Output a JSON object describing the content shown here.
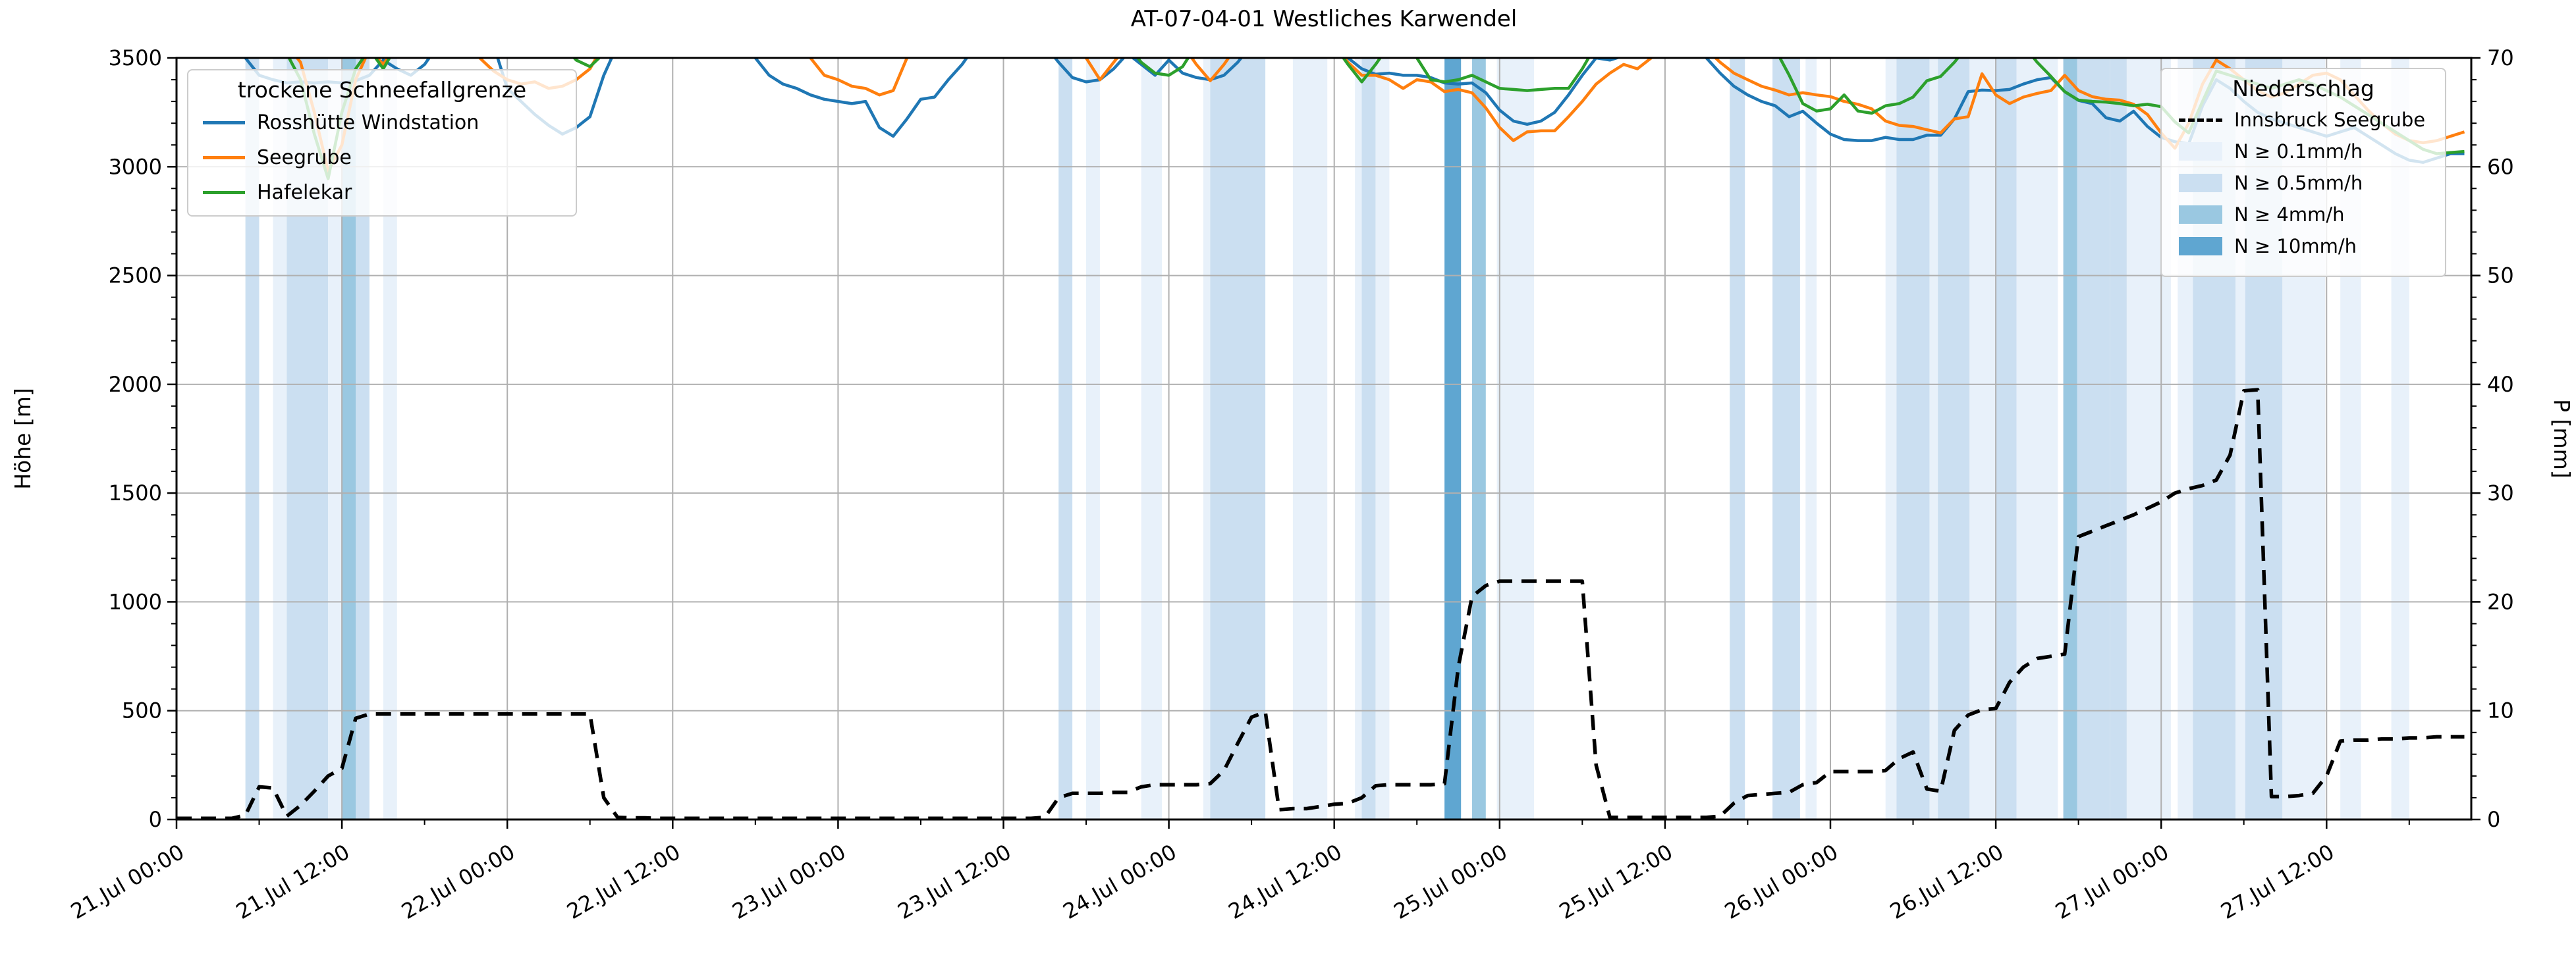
{
  "title": "AT-07-04-01 Westliches Karwendel",
  "axes": {
    "left_label": "Höhe [m]",
    "right_label": "P [mm]",
    "left_ticks": [
      0,
      500,
      1000,
      1500,
      2000,
      2500,
      3000,
      3500
    ],
    "right_ticks": [
      0,
      10,
      20,
      30,
      40,
      50,
      60,
      70
    ],
    "x_tick_hours": [
      0,
      12,
      24,
      36,
      48,
      60,
      72,
      84,
      96,
      108,
      120,
      132,
      144,
      156
    ],
    "x_tick_labels": [
      "21.Jul 00:00",
      "21.Jul 12:00",
      "22.Jul 00:00",
      "22.Jul 12:00",
      "23.Jul 00:00",
      "23.Jul 12:00",
      "24.Jul 00:00",
      "24.Jul 12:00",
      "25.Jul 00:00",
      "25.Jul 12:00",
      "26.Jul 00:00",
      "26.Jul 12:00",
      "27.Jul 00:00",
      "27.Jul 12:00"
    ]
  },
  "legend_snow": {
    "title": "trockene Schneefallgrenze",
    "items": [
      {
        "label": "Rosshütte Windstation",
        "color": "#1f77b4"
      },
      {
        "label": "Seegrube",
        "color": "#ff7f0e"
      },
      {
        "label": "Hafelekar",
        "color": "#2ca02c"
      }
    ]
  },
  "legend_precip": {
    "title": "Niederschlag",
    "line_item": {
      "label": "Innsbruck Seegrube",
      "color": "#000000"
    },
    "band_items": [
      {
        "label": "N ≥ 0.1mm/h"
      },
      {
        "label": "N ≥ 0.5mm/h"
      },
      {
        "label": "N ≥ 4mm/h"
      },
      {
        "label": "N ≥ 10mm/h"
      }
    ]
  },
  "chart_data": {
    "type": "line",
    "x_unit": "hours since 21 Jul 00:00",
    "x_start_hour": 0,
    "x_end_hour": 166.5,
    "ylim_left": [
      0,
      3500
    ],
    "ylim_right": [
      0,
      70
    ],
    "grid": true,
    "clip_above_value": 3510,
    "band_colors": [
      "#e8f1fa",
      "#cbdff1",
      "#9ac8e1",
      "#5fa6d1"
    ],
    "grid_color": "#b0b0b0",
    "series": [
      {
        "name": "Rosshütte Windstation",
        "color": "#1f77b4",
        "axis": "left",
        "values": [
          3560,
          3560,
          3560,
          3560,
          3560,
          3500,
          3420,
          3400,
          3385,
          3390,
          3385,
          3390,
          3385,
          3395,
          3420,
          3490,
          3450,
          3420,
          3470,
          3560,
          3560,
          3560,
          3560,
          3560,
          3360,
          3300,
          3240,
          3190,
          3150,
          3180,
          3230,
          3420,
          3560,
          3560,
          3560,
          3560,
          3560,
          3560,
          3560,
          3560,
          3560,
          3560,
          3500,
          3420,
          3380,
          3360,
          3330,
          3310,
          3300,
          3290,
          3300,
          3180,
          3140,
          3220,
          3310,
          3320,
          3400,
          3470,
          3560,
          3560,
          3560,
          3560,
          3560,
          3560,
          3480,
          3410,
          3390,
          3400,
          3450,
          3520,
          3470,
          3420,
          3490,
          3430,
          3410,
          3400,
          3420,
          3480,
          3560,
          3560,
          3560,
          3560,
          3560,
          3560,
          3560,
          3500,
          3450,
          3425,
          3430,
          3420,
          3420,
          3410,
          3385,
          3380,
          3385,
          3340,
          3260,
          3210,
          3195,
          3210,
          3250,
          3330,
          3420,
          3500,
          3490,
          3510,
          3560,
          3530,
          3560,
          3560,
          3560,
          3500,
          3430,
          3370,
          3330,
          3300,
          3280,
          3230,
          3255,
          3200,
          3150,
          3125,
          3120,
          3120,
          3135,
          3125,
          3125,
          3145,
          3145,
          3220,
          3345,
          3352,
          3350,
          3355,
          3380,
          3400,
          3410,
          3345,
          3305,
          3290,
          3225,
          3210,
          3255,
          3185,
          3135,
          3115,
          3105,
          3280,
          3400,
          3360,
          3300,
          3250,
          3220,
          3200,
          3180,
          3160,
          3140,
          3160,
          3180,
          3140,
          3100,
          3060,
          3030,
          3020,
          3040,
          3060,
          3060
        ]
      },
      {
        "name": "Seegrube",
        "color": "#ff7f0e",
        "axis": "left",
        "values": [
          3560,
          3560,
          3560,
          3560,
          3560,
          3560,
          3560,
          3560,
          3560,
          3480,
          3250,
          2980,
          3100,
          3400,
          3540,
          3470,
          3560,
          3560,
          3560,
          3560,
          3560,
          3560,
          3500,
          3440,
          3400,
          3380,
          3390,
          3360,
          3370,
          3400,
          3450,
          3560,
          3560,
          3560,
          3560,
          3560,
          3560,
          3560,
          3560,
          3560,
          3560,
          3560,
          3560,
          3560,
          3560,
          3560,
          3500,
          3420,
          3400,
          3370,
          3360,
          3330,
          3350,
          3500,
          3560,
          3560,
          3560,
          3560,
          3560,
          3560,
          3560,
          3560,
          3560,
          3560,
          3560,
          3560,
          3500,
          3400,
          3480,
          3560,
          3560,
          3560,
          3560,
          3560,
          3470,
          3395,
          3470,
          3560,
          3560,
          3560,
          3560,
          3560,
          3560,
          3560,
          3560,
          3480,
          3420,
          3420,
          3400,
          3360,
          3400,
          3390,
          3345,
          3355,
          3340,
          3270,
          3180,
          3120,
          3160,
          3165,
          3165,
          3230,
          3300,
          3380,
          3430,
          3470,
          3450,
          3500,
          3560,
          3560,
          3560,
          3540,
          3480,
          3430,
          3400,
          3370,
          3352,
          3330,
          3340,
          3330,
          3322,
          3300,
          3287,
          3266,
          3210,
          3190,
          3185,
          3170,
          3155,
          3220,
          3230,
          3427,
          3330,
          3290,
          3320,
          3337,
          3350,
          3420,
          3350,
          3322,
          3310,
          3306,
          3287,
          3240,
          3155,
          3085,
          3200,
          3380,
          3490,
          3450,
          3400,
          3350,
          3320,
          3340,
          3380,
          3420,
          3430,
          3400,
          3330,
          3260,
          3200,
          3150,
          3120,
          3110,
          3120,
          3140,
          3160
        ]
      },
      {
        "name": "Hafelekar",
        "color": "#2ca02c",
        "axis": "left",
        "values": [
          3560,
          3560,
          3560,
          3560,
          3560,
          3560,
          3560,
          3560,
          3520,
          3400,
          3150,
          2945,
          3250,
          3450,
          3540,
          3450,
          3560,
          3560,
          3560,
          3560,
          3560,
          3560,
          3560,
          3560,
          3560,
          3560,
          3560,
          3560,
          3560,
          3490,
          3460,
          3520,
          3560,
          3560,
          3560,
          3560,
          3560,
          3560,
          3560,
          3560,
          3560,
          3560,
          3560,
          3560,
          3560,
          3560,
          3560,
          3560,
          3560,
          3560,
          3560,
          3560,
          3560,
          3560,
          3560,
          3560,
          3560,
          3560,
          3560,
          3560,
          3560,
          3560,
          3560,
          3560,
          3560,
          3560,
          3560,
          3560,
          3560,
          3560,
          3480,
          3430,
          3420,
          3460,
          3560,
          3560,
          3560,
          3560,
          3560,
          3560,
          3560,
          3560,
          3560,
          3560,
          3560,
          3470,
          3390,
          3470,
          3560,
          3560,
          3500,
          3400,
          3390,
          3400,
          3420,
          3390,
          3360,
          3355,
          3350,
          3355,
          3360,
          3360,
          3450,
          3560,
          3560,
          3560,
          3560,
          3560,
          3560,
          3560,
          3560,
          3560,
          3560,
          3560,
          3560,
          3560,
          3540,
          3422,
          3290,
          3256,
          3266,
          3330,
          3256,
          3246,
          3280,
          3290,
          3320,
          3395,
          3415,
          3480,
          3560,
          3560,
          3560,
          3560,
          3560,
          3480,
          3415,
          3345,
          3306,
          3300,
          3297,
          3290,
          3280,
          3287,
          3276,
          3206,
          3155,
          3300,
          3440,
          3420,
          3400,
          3380,
          3360,
          3380,
          3400,
          3380,
          3350,
          3320,
          3280,
          3240,
          3200,
          3160,
          3120,
          3080,
          3060,
          3065,
          3070
        ]
      }
    ],
    "precip_line": {
      "name": "Innsbruck Seegrube",
      "color": "#000000",
      "axis": "right",
      "dashed": true,
      "values": [
        0.1,
        0.1,
        0.1,
        0.1,
        0.1,
        0.4,
        3.0,
        2.9,
        0.3,
        1.3,
        2.6,
        4.0,
        4.7,
        9.3,
        9.7,
        9.7,
        9.7,
        9.7,
        9.7,
        9.7,
        9.7,
        9.7,
        9.7,
        9.7,
        9.7,
        9.7,
        9.7,
        9.7,
        9.7,
        9.7,
        9.7,
        2.0,
        0.2,
        0.15,
        0.15,
        0.1,
        0.1,
        0.1,
        0.1,
        0.1,
        0.1,
        0.1,
        0.1,
        0.1,
        0.1,
        0.1,
        0.1,
        0.1,
        0.1,
        0.1,
        0.1,
        0.1,
        0.1,
        0.1,
        0.1,
        0.1,
        0.1,
        0.1,
        0.1,
        0.1,
        0.1,
        0.1,
        0.1,
        0.2,
        2.0,
        2.4,
        2.4,
        2.4,
        2.5,
        2.5,
        3.0,
        3.2,
        3.2,
        3.2,
        3.2,
        3.3,
        4.5,
        7.0,
        9.4,
        9.9,
        0.9,
        1.0,
        1.0,
        1.2,
        1.4,
        1.5,
        2.0,
        3.1,
        3.2,
        3.2,
        3.2,
        3.2,
        3.3,
        14.0,
        20.5,
        21.5,
        21.9,
        21.9,
        21.9,
        21.9,
        21.9,
        21.9,
        21.9,
        5.0,
        0.2,
        0.2,
        0.2,
        0.2,
        0.2,
        0.2,
        0.2,
        0.2,
        0.3,
        1.5,
        2.2,
        2.3,
        2.4,
        2.5,
        3.2,
        3.4,
        4.4,
        4.4,
        4.4,
        4.4,
        4.5,
        5.6,
        6.2,
        2.8,
        2.6,
        8.2,
        9.6,
        10.1,
        10.2,
        12.6,
        14.0,
        14.8,
        15.0,
        15.2,
        26.0,
        26.5,
        27.0,
        27.5,
        28.0,
        28.6,
        29.2,
        30.0,
        30.4,
        30.7,
        31.2,
        33.5,
        39.4,
        39.5,
        2.1,
        2.1,
        2.2,
        2.4,
        4.0,
        7.2,
        7.3,
        7.3,
        7.4,
        7.4,
        7.5,
        7.5,
        7.6,
        7.6,
        7.6
      ]
    },
    "precip_bands": [
      [
        5,
        6,
        2
      ],
      [
        7,
        8,
        1
      ],
      [
        8,
        11,
        2
      ],
      [
        11,
        12,
        1
      ],
      [
        12,
        13,
        3
      ],
      [
        13,
        14,
        2
      ],
      [
        15,
        16,
        1
      ],
      [
        64,
        65,
        2
      ],
      [
        66,
        67,
        1
      ],
      [
        70,
        71.5,
        1
      ],
      [
        74.5,
        75,
        1
      ],
      [
        75,
        79,
        2
      ],
      [
        81,
        83.5,
        1
      ],
      [
        85.5,
        86,
        1
      ],
      [
        86,
        87,
        2
      ],
      [
        87,
        88,
        1
      ],
      [
        92,
        93.2,
        4
      ],
      [
        94,
        95,
        3
      ],
      [
        95.8,
        98.5,
        1
      ],
      [
        112.7,
        113.8,
        2
      ],
      [
        115.8,
        117.8,
        2
      ],
      [
        118.2,
        119,
        1
      ],
      [
        124,
        124.8,
        1
      ],
      [
        124.8,
        127.2,
        2
      ],
      [
        127.2,
        127.8,
        1
      ],
      [
        127.8,
        130.1,
        2
      ],
      [
        130.1,
        132,
        1
      ],
      [
        132,
        133.5,
        2
      ],
      [
        133.5,
        136.5,
        1
      ],
      [
        136.9,
        137.9,
        3
      ],
      [
        137.9,
        140.3,
        2
      ],
      [
        140.3,
        141.5,
        2
      ],
      [
        141.5,
        144.7,
        1
      ],
      [
        145.2,
        146.3,
        1
      ],
      [
        146.3,
        149.4,
        2
      ],
      [
        149.4,
        150.1,
        1
      ],
      [
        150.1,
        152.8,
        2
      ],
      [
        152.8,
        155.9,
        1
      ],
      [
        157,
        158.5,
        1
      ],
      [
        160.7,
        162,
        1
      ]
    ]
  }
}
